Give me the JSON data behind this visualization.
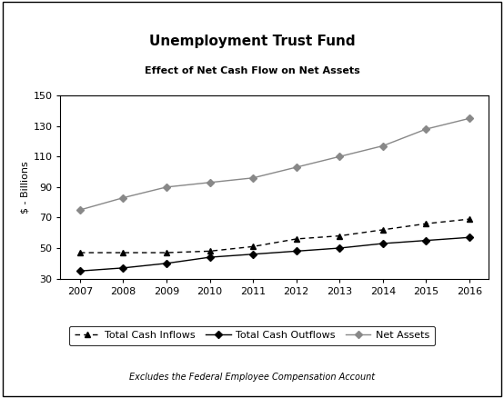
{
  "title": "Unemployment Trust Fund",
  "subtitle": "Effect of Net Cash Flow on Net Assets",
  "footnote": "Excludes the Federal Employee Compensation Account",
  "ylabel": "$ - Billions",
  "years": [
    2007,
    2008,
    2009,
    2010,
    2011,
    2012,
    2013,
    2014,
    2015,
    2016
  ],
  "total_cash_inflows": [
    47,
    47,
    47,
    48,
    51,
    56,
    58,
    62,
    66,
    69
  ],
  "total_cash_outflows": [
    35,
    37,
    40,
    44,
    46,
    48,
    50,
    53,
    55,
    57
  ],
  "net_assets": [
    75,
    83,
    90,
    93,
    96,
    103,
    110,
    117,
    128,
    135
  ],
  "ylim": [
    30,
    150
  ],
  "yticks": [
    30,
    50,
    70,
    90,
    110,
    130,
    150
  ],
  "legend_labels": [
    "Total Cash Inflows",
    "Total Cash Outflows",
    "Net Assets"
  ],
  "line_color_dark": "#000000",
  "line_color_gray": "#888888",
  "background_color": "#ffffff"
}
